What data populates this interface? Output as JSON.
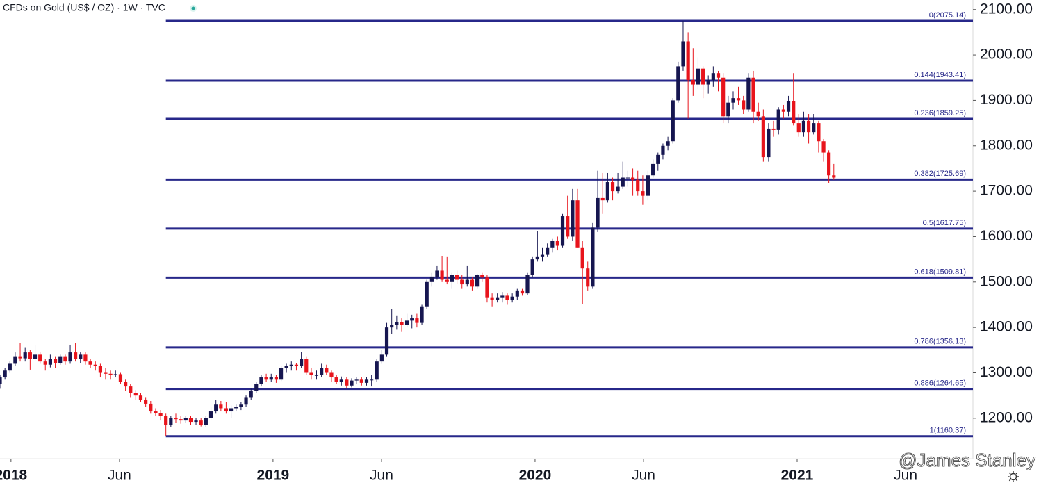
{
  "chart_data": {
    "type": "candlestick",
    "title": "CFDs on Gold (US$ / OZ) · 1W · TVC",
    "watermark": "@James Stanley",
    "up_color": "#161650",
    "down_color": "#e8141c",
    "level_color": "#27288a",
    "xlim": [
      2017.958,
      2021.671
    ],
    "ylim": [
      1111,
      2121
    ],
    "xticks": [
      2018,
      {
        "value": 2018.414,
        "label": "Jun"
      },
      2019,
      {
        "value": 2019.414,
        "label": "Jun"
      },
      2020,
      {
        "value": 2020.414,
        "label": "Jun"
      },
      2021,
      {
        "value": 2021.414,
        "label": "Jun"
      }
    ],
    "yticks": [
      {
        "value": 1200,
        "label": "1200.00"
      },
      {
        "value": 1300,
        "label": "1300.00"
      },
      {
        "value": 1400,
        "label": "1400.00"
      },
      {
        "value": 1500,
        "label": "1500.00"
      },
      {
        "value": 1600,
        "label": "1600.00"
      },
      {
        "value": 1700,
        "label": "1700.00"
      },
      {
        "value": 1800,
        "label": "1800.00"
      },
      {
        "value": 1900,
        "label": "1900.00"
      },
      {
        "value": 2000,
        "label": "2000.00"
      },
      {
        "value": 2100,
        "label": "2100.00"
      }
    ],
    "levels": [
      {
        "label": "0(2075.14)",
        "value": 2075.14
      },
      {
        "label": "0.144(1943.41)",
        "value": 1943.41
      },
      {
        "label": "0.236(1859.25)",
        "value": 1859.25
      },
      {
        "label": "0.382(1725.69)",
        "value": 1725.69
      },
      {
        "label": "0.5(1617.75)",
        "value": 1617.75
      },
      {
        "label": "0.618(1509.81)",
        "value": 1509.81
      },
      {
        "label": "0.786(1356.13)",
        "value": 1356.13
      },
      {
        "label": "0.886(1264.65)",
        "value": 1264.65
      },
      {
        "label": "1(1160.37)",
        "value": 1160.37
      }
    ],
    "candles": [
      [
        2017.958,
        1275,
        1295,
        1265,
        1290
      ],
      [
        2017.977,
        1290,
        1310,
        1285,
        1305
      ],
      [
        2017.996,
        1305,
        1325,
        1300,
        1320
      ],
      [
        2018.016,
        1320,
        1345,
        1315,
        1335
      ],
      [
        2018.035,
        1335,
        1366,
        1325,
        1332
      ],
      [
        2018.054,
        1332,
        1355,
        1325,
        1345
      ],
      [
        2018.073,
        1345,
        1350,
        1307,
        1330
      ],
      [
        2018.092,
        1330,
        1362,
        1325,
        1340
      ],
      [
        2018.111,
        1340,
        1345,
        1320,
        1325
      ],
      [
        2018.131,
        1325,
        1330,
        1305,
        1318
      ],
      [
        2018.15,
        1318,
        1340,
        1312,
        1330
      ],
      [
        2018.169,
        1330,
        1335,
        1310,
        1322
      ],
      [
        2018.188,
        1322,
        1340,
        1318,
        1335
      ],
      [
        2018.207,
        1335,
        1340,
        1318,
        1325
      ],
      [
        2018.226,
        1325,
        1362,
        1320,
        1345
      ],
      [
        2018.246,
        1345,
        1366,
        1325,
        1330
      ],
      [
        2018.265,
        1330,
        1345,
        1322,
        1340
      ],
      [
        2018.284,
        1340,
        1345,
        1318,
        1325
      ],
      [
        2018.303,
        1325,
        1330,
        1310,
        1318
      ],
      [
        2018.322,
        1318,
        1325,
        1305,
        1315
      ],
      [
        2018.341,
        1315,
        1320,
        1290,
        1300
      ],
      [
        2018.361,
        1300,
        1310,
        1285,
        1298
      ],
      [
        2018.38,
        1298,
        1305,
        1285,
        1295
      ],
      [
        2018.399,
        1295,
        1305,
        1290,
        1297
      ],
      [
        2018.418,
        1297,
        1300,
        1275,
        1280
      ],
      [
        2018.437,
        1280,
        1285,
        1260,
        1270
      ],
      [
        2018.456,
        1270,
        1275,
        1245,
        1255
      ],
      [
        2018.476,
        1255,
        1262,
        1240,
        1250
      ],
      [
        2018.495,
        1250,
        1255,
        1235,
        1240
      ],
      [
        2018.514,
        1240,
        1245,
        1225,
        1232
      ],
      [
        2018.533,
        1232,
        1238,
        1210,
        1215
      ],
      [
        2018.552,
        1215,
        1222,
        1205,
        1212
      ],
      [
        2018.571,
        1212,
        1218,
        1195,
        1205
      ],
      [
        2018.591,
        1205,
        1210,
        1160,
        1185
      ],
      [
        2018.61,
        1185,
        1205,
        1180,
        1200
      ],
      [
        2018.629,
        1200,
        1210,
        1190,
        1198
      ],
      [
        2018.648,
        1198,
        1205,
        1188,
        1195
      ],
      [
        2018.667,
        1195,
        1205,
        1190,
        1200
      ],
      [
        2018.686,
        1200,
        1205,
        1185,
        1192
      ],
      [
        2018.706,
        1192,
        1200,
        1185,
        1195
      ],
      [
        2018.725,
        1195,
        1200,
        1182,
        1185
      ],
      [
        2018.744,
        1185,
        1205,
        1180,
        1200
      ],
      [
        2018.763,
        1200,
        1225,
        1195,
        1215
      ],
      [
        2018.782,
        1215,
        1240,
        1210,
        1230
      ],
      [
        2018.801,
        1230,
        1238,
        1215,
        1222
      ],
      [
        2018.821,
        1222,
        1235,
        1210,
        1215
      ],
      [
        2018.84,
        1215,
        1228,
        1200,
        1222
      ],
      [
        2018.859,
        1222,
        1230,
        1215,
        1225
      ],
      [
        2018.878,
        1225,
        1235,
        1218,
        1230
      ],
      [
        2018.897,
        1230,
        1250,
        1225,
        1245
      ],
      [
        2018.916,
        1245,
        1265,
        1240,
        1260
      ],
      [
        2018.936,
        1260,
        1280,
        1255,
        1275
      ],
      [
        2018.955,
        1275,
        1295,
        1270,
        1290
      ],
      [
        2018.974,
        1290,
        1298,
        1280,
        1285
      ],
      [
        2018.993,
        1285,
        1298,
        1280,
        1290
      ],
      [
        2019.012,
        1290,
        1295,
        1278,
        1285
      ],
      [
        2019.031,
        1285,
        1315,
        1282,
        1310
      ],
      [
        2019.051,
        1310,
        1320,
        1300,
        1315
      ],
      [
        2019.07,
        1315,
        1325,
        1305,
        1318
      ],
      [
        2019.089,
        1318,
        1322,
        1305,
        1315
      ],
      [
        2019.108,
        1315,
        1346,
        1310,
        1330
      ],
      [
        2019.127,
        1330,
        1335,
        1295,
        1300
      ],
      [
        2019.146,
        1300,
        1310,
        1285,
        1295
      ],
      [
        2019.166,
        1295,
        1305,
        1285,
        1295
      ],
      [
        2019.185,
        1295,
        1320,
        1290,
        1310
      ],
      [
        2019.204,
        1310,
        1318,
        1295,
        1300
      ],
      [
        2019.223,
        1300,
        1305,
        1280,
        1290
      ],
      [
        2019.242,
        1290,
        1295,
        1275,
        1280
      ],
      [
        2019.261,
        1280,
        1292,
        1272,
        1285
      ],
      [
        2019.281,
        1285,
        1290,
        1266,
        1272
      ],
      [
        2019.3,
        1272,
        1288,
        1268,
        1283
      ],
      [
        2019.319,
        1283,
        1290,
        1275,
        1285
      ],
      [
        2019.338,
        1285,
        1290,
        1272,
        1278
      ],
      [
        2019.357,
        1278,
        1290,
        1272,
        1285
      ],
      [
        2019.376,
        1285,
        1295,
        1270,
        1285
      ],
      [
        2019.396,
        1285,
        1330,
        1280,
        1325
      ],
      [
        2019.415,
        1325,
        1350,
        1320,
        1340
      ],
      [
        2019.434,
        1340,
        1410,
        1335,
        1400
      ],
      [
        2019.453,
        1400,
        1440,
        1385,
        1405
      ],
      [
        2019.472,
        1405,
        1425,
        1395,
        1412
      ],
      [
        2019.491,
        1412,
        1420,
        1390,
        1405
      ],
      [
        2019.511,
        1405,
        1430,
        1400,
        1415
      ],
      [
        2019.53,
        1415,
        1428,
        1398,
        1420
      ],
      [
        2019.549,
        1420,
        1430,
        1400,
        1410
      ],
      [
        2019.568,
        1410,
        1450,
        1405,
        1445
      ],
      [
        2019.587,
        1445,
        1505,
        1440,
        1500
      ],
      [
        2019.606,
        1500,
        1520,
        1490,
        1512
      ],
      [
        2019.626,
        1512,
        1535,
        1505,
        1525
      ],
      [
        2019.645,
        1525,
        1557,
        1500,
        1505
      ],
      [
        2019.664,
        1505,
        1555,
        1495,
        1500
      ],
      [
        2019.683,
        1500,
        1520,
        1485,
        1515
      ],
      [
        2019.702,
        1515,
        1525,
        1495,
        1505
      ],
      [
        2019.721,
        1505,
        1515,
        1485,
        1495
      ],
      [
        2019.741,
        1495,
        1535,
        1490,
        1505
      ],
      [
        2019.76,
        1505,
        1510,
        1480,
        1490
      ],
      [
        2019.779,
        1490,
        1518,
        1485,
        1515
      ],
      [
        2019.798,
        1515,
        1520,
        1500,
        1510
      ],
      [
        2019.817,
        1510,
        1515,
        1455,
        1465
      ],
      [
        2019.836,
        1465,
        1475,
        1445,
        1460
      ],
      [
        2019.856,
        1460,
        1475,
        1455,
        1465
      ],
      [
        2019.875,
        1465,
        1478,
        1455,
        1470
      ],
      [
        2019.894,
        1470,
        1475,
        1450,
        1460
      ],
      [
        2019.913,
        1460,
        1475,
        1455,
        1468
      ],
      [
        2019.932,
        1468,
        1485,
        1460,
        1480
      ],
      [
        2019.951,
        1480,
        1485,
        1470,
        1475
      ],
      [
        2019.971,
        1475,
        1520,
        1472,
        1515
      ],
      [
        2019.99,
        1515,
        1555,
        1510,
        1550
      ],
      [
        2020.009,
        1550,
        1612,
        1545,
        1555
      ],
      [
        2020.028,
        1555,
        1575,
        1545,
        1560
      ],
      [
        2020.047,
        1560,
        1585,
        1555,
        1575
      ],
      [
        2020.066,
        1575,
        1595,
        1565,
        1590
      ],
      [
        2020.086,
        1590,
        1600,
        1570,
        1580
      ],
      [
        2020.105,
        1580,
        1650,
        1575,
        1645
      ],
      [
        2020.124,
        1645,
        1690,
        1595,
        1600
      ],
      [
        2020.143,
        1600,
        1705,
        1590,
        1680
      ],
      [
        2020.162,
        1680,
        1705,
        1575,
        1575
      ],
      [
        2020.181,
        1575,
        1590,
        1452,
        1530
      ],
      [
        2020.201,
        1530,
        1545,
        1480,
        1490
      ],
      [
        2020.22,
        1490,
        1630,
        1485,
        1620
      ],
      [
        2020.239,
        1620,
        1745,
        1610,
        1685
      ],
      [
        2020.258,
        1685,
        1740,
        1650,
        1680
      ],
      [
        2020.277,
        1680,
        1740,
        1675,
        1720
      ],
      [
        2020.296,
        1720,
        1730,
        1680,
        1700
      ],
      [
        2020.316,
        1700,
        1740,
        1695,
        1710
      ],
      [
        2020.335,
        1710,
        1765,
        1705,
        1730
      ],
      [
        2020.354,
        1730,
        1745,
        1710,
        1730
      ],
      [
        2020.373,
        1730,
        1750,
        1690,
        1725
      ],
      [
        2020.392,
        1725,
        1745,
        1690,
        1700
      ],
      [
        2020.411,
        1700,
        1735,
        1670,
        1690
      ],
      [
        2020.431,
        1690,
        1745,
        1680,
        1735
      ],
      [
        2020.45,
        1735,
        1770,
        1730,
        1760
      ],
      [
        2020.469,
        1760,
        1785,
        1745,
        1780
      ],
      [
        2020.488,
        1780,
        1805,
        1770,
        1800
      ],
      [
        2020.507,
        1800,
        1820,
        1790,
        1810
      ],
      [
        2020.526,
        1810,
        1905,
        1805,
        1900
      ],
      [
        2020.546,
        1900,
        1985,
        1895,
        1975
      ],
      [
        2020.565,
        1975,
        2075,
        1965,
        2030
      ],
      [
        2020.584,
        2030,
        2050,
        1860,
        1945
      ],
      [
        2020.603,
        1945,
        2015,
        1910,
        1935
      ],
      [
        2020.622,
        1935,
        1995,
        1925,
        1970
      ],
      [
        2020.641,
        1970,
        1975,
        1905,
        1935
      ],
      [
        2020.661,
        1935,
        1955,
        1915,
        1945
      ],
      [
        2020.68,
        1945,
        1975,
        1930,
        1960
      ],
      [
        2020.699,
        1960,
        1965,
        1920,
        1950
      ],
      [
        2020.718,
        1950,
        1960,
        1850,
        1865
      ],
      [
        2020.737,
        1865,
        1910,
        1850,
        1895
      ],
      [
        2020.756,
        1895,
        1920,
        1880,
        1905
      ],
      [
        2020.776,
        1905,
        1930,
        1890,
        1900
      ],
      [
        2020.795,
        1900,
        1910,
        1870,
        1880
      ],
      [
        2020.814,
        1880,
        1960,
        1875,
        1950
      ],
      [
        2020.833,
        1950,
        1965,
        1850,
        1875
      ],
      [
        2020.852,
        1875,
        1895,
        1855,
        1865
      ],
      [
        2020.871,
        1865,
        1880,
        1765,
        1775
      ],
      [
        2020.891,
        1775,
        1850,
        1765,
        1838
      ],
      [
        2020.91,
        1838,
        1855,
        1820,
        1835
      ],
      [
        2020.929,
        1835,
        1885,
        1825,
        1880
      ],
      [
        2020.948,
        1880,
        1890,
        1860,
        1875
      ],
      [
        2020.967,
        1875,
        1910,
        1865,
        1898
      ],
      [
        2020.986,
        1898,
        1960,
        1845,
        1850
      ],
      [
        2021.006,
        1850,
        1870,
        1820,
        1830
      ],
      [
        2021.025,
        1830,
        1875,
        1820,
        1855
      ],
      [
        2021.044,
        1855,
        1870,
        1805,
        1830
      ],
      [
        2021.063,
        1830,
        1870,
        1825,
        1850
      ],
      [
        2021.082,
        1850,
        1855,
        1785,
        1810
      ],
      [
        2021.101,
        1810,
        1815,
        1765,
        1785
      ],
      [
        2021.121,
        1785,
        1790,
        1717,
        1735
      ],
      [
        2021.14,
        1735,
        1760,
        1725,
        1730
      ]
    ]
  }
}
